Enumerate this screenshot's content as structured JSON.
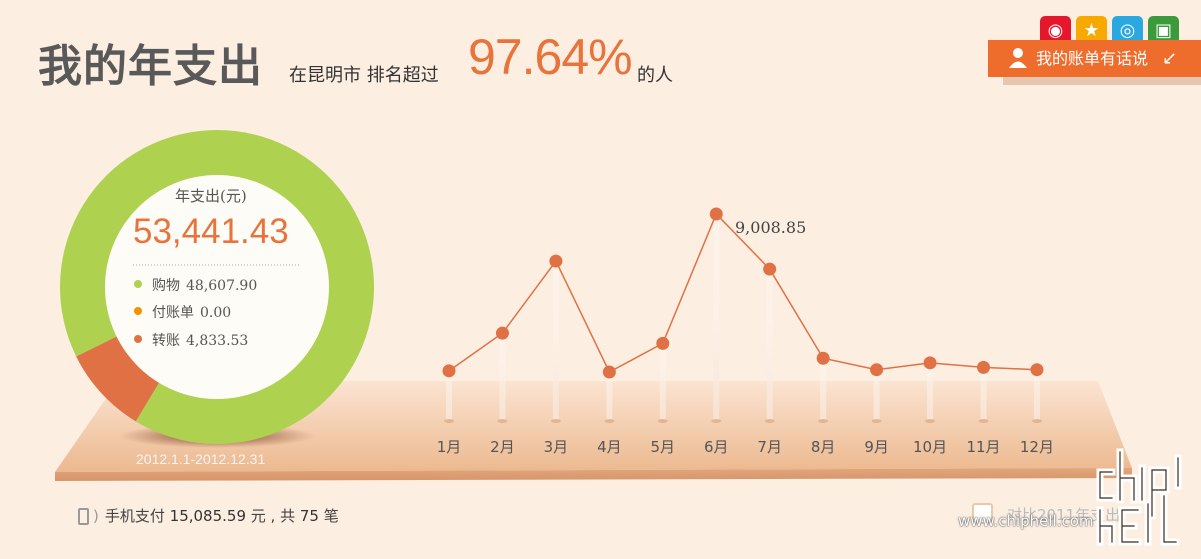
{
  "header": {
    "title": "我的年支出",
    "subtitle_prefix": "在昆明市 排名超过",
    "percentile": "97.64%",
    "subtitle_suffix": "的人"
  },
  "share": {
    "icons": [
      "weibo-icon",
      "qzone-icon",
      "qq-icon",
      "renren-icon"
    ],
    "colors": [
      "#e6162d",
      "#f7a900",
      "#2aa8e0",
      "#3b9a3b"
    ]
  },
  "bill_button": {
    "label": "我的账单有话说",
    "arrow": "↙"
  },
  "summary": {
    "label": "年支出(元)",
    "total": "53,441.43",
    "categories": [
      {
        "name": "购物",
        "value": "48,607.90",
        "color": "#aed14f"
      },
      {
        "name": "付账单",
        "value": "0.00",
        "color": "#f39200"
      },
      {
        "name": "转账",
        "value": "4,833.53",
        "color": "#e07144"
      }
    ],
    "date_range": "2012.1.1-2012.12.31"
  },
  "chart_data": {
    "type": "line",
    "categories": [
      "1月",
      "2月",
      "3月",
      "4月",
      "5月",
      "6月",
      "7月",
      "8月",
      "9月",
      "10月",
      "11月",
      "12月"
    ],
    "series": [
      {
        "values": [
          2150,
          3800,
          6950,
          2100,
          3350,
          9008.85,
          6600,
          2700,
          2200,
          2500,
          2300,
          2200
        ]
      }
    ],
    "annotations": [
      {
        "x": "6月",
        "label": "9,008.85"
      }
    ],
    "color": "#e07144"
  },
  "donut": {
    "type": "pie",
    "values": [
      48607.9,
      0.0,
      4833.53
    ],
    "colors": [
      "#aed14f",
      "#f39200",
      "#e07144"
    ]
  },
  "footer": {
    "mobile_label": "手机支付",
    "mobile_amount": "15,085.59",
    "mobile_unit": "元 , 共",
    "mobile_count": "75",
    "mobile_count_unit": "笔",
    "compare_label": "对比2011年支出",
    "watermark_url": "www.chiphell.com"
  }
}
